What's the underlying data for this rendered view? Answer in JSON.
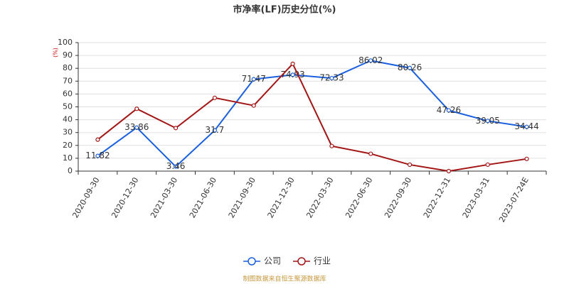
{
  "chart_data": {
    "type": "line",
    "title": "市净率(LF)历史分位(%)",
    "y_label": "(%)",
    "source": "制图数据来自恒生聚源数据库",
    "categories": [
      "2020-09-30",
      "2020-12-30",
      "2021-03-30",
      "2021-06-30",
      "2021-09-30",
      "2021-12-30",
      "2022-03-30",
      "2022-06-30",
      "2022-09-30",
      "2022-12-31",
      "2023-03-31",
      "2023-07-24E"
    ],
    "series": [
      {
        "name": "公司",
        "color": "#1a5fe0",
        "data_labels": true,
        "values": [
          11.82,
          33.86,
          3.46,
          31.7,
          71.47,
          74.93,
          72.33,
          86.02,
          80.26,
          47.26,
          39.05,
          34.44
        ]
      },
      {
        "name": "行业",
        "color": "#a31515",
        "data_labels": false,
        "values": [
          24.5,
          48.5,
          33.5,
          57,
          51,
          83.5,
          19.5,
          13.5,
          5,
          0,
          5,
          9.5
        ]
      }
    ],
    "ylim": [
      0,
      100
    ],
    "yticks": [
      0,
      10,
      20,
      30,
      40,
      50,
      60,
      70,
      80,
      90,
      100
    ],
    "grid": true,
    "legend": "bottom"
  }
}
